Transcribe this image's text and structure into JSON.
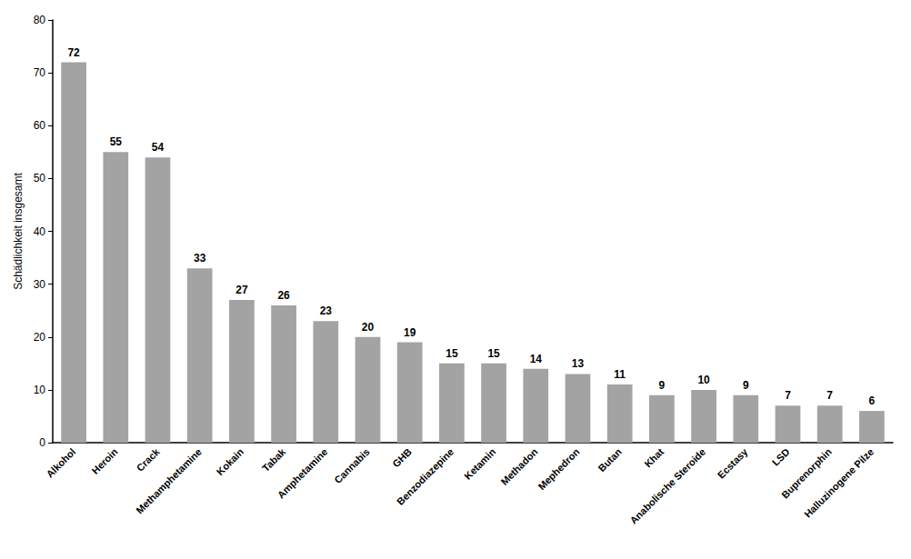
{
  "chart_data": {
    "type": "bar",
    "y_label": "Schädlichkeit insgesamt",
    "categories": [
      "Alkohol",
      "Heroin",
      "Crack",
      "Methamphetamine",
      "Kokain",
      "Tabak",
      "Amphetamine",
      "Cannabis",
      "GHB",
      "Benzodiazepine",
      "Ketamin",
      "Methadon",
      "Mephedron",
      "Butan",
      "Khat",
      "Anabolische Steroide",
      "Ecstasy",
      "LSD",
      "Buprenorphin",
      "Halluzinogene Pilze"
    ],
    "values": [
      72,
      55,
      54,
      33,
      27,
      26,
      23,
      20,
      19,
      15,
      15,
      14,
      13,
      11,
      9,
      10,
      9,
      7,
      7,
      6
    ],
    "color": "#a3a3a3",
    "ylim": [
      0,
      80
    ],
    "yticks": [
      0,
      10,
      20,
      30,
      40,
      50,
      60,
      70,
      80
    ],
    "grid": false,
    "data_labels": true
  }
}
